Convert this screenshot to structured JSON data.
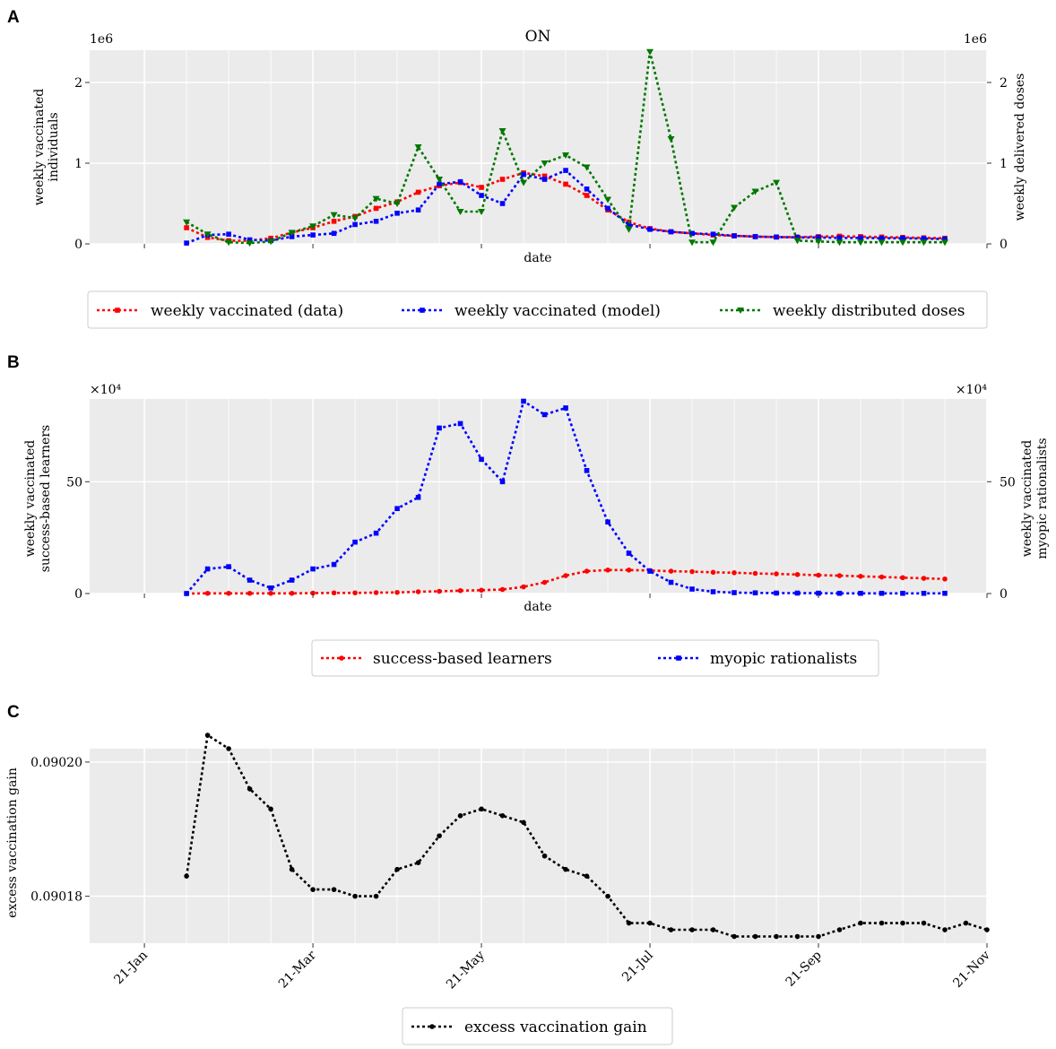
{
  "figure": {
    "panel_labels": [
      "A",
      "B",
      "C"
    ]
  },
  "chart_data": [
    {
      "panel": "A",
      "type": "line",
      "title": "ON",
      "xlabel": "date",
      "ylabel_lines": [
        "weekly vaccinated",
        "individuals"
      ],
      "ylabel_right": "weekly delivered doses",
      "offset_left": "1e6",
      "offset_right": "1e6",
      "ylim": [
        0,
        2.4
      ],
      "yticks": [
        0,
        1,
        2
      ],
      "ytick_labels": [
        "0",
        "1",
        "2"
      ],
      "grid": true,
      "legend_position": "below",
      "series": [
        {
          "name": "weekly vaccinated (data)",
          "color": "#ff0000",
          "marker": "square",
          "axis": "left",
          "x": [
            7,
            8,
            9,
            10,
            11,
            12,
            13,
            14,
            15,
            16,
            17,
            18,
            19,
            20,
            21,
            22,
            23,
            24,
            25,
            26,
            27,
            28,
            29,
            30,
            31,
            32,
            33,
            34,
            35,
            36,
            37,
            38,
            39,
            40,
            41,
            42,
            43
          ],
          "values": [
            0.2,
            0.08,
            0.04,
            0.04,
            0.07,
            0.14,
            0.2,
            0.28,
            0.34,
            0.44,
            0.52,
            0.64,
            0.72,
            0.76,
            0.7,
            0.8,
            0.88,
            0.84,
            0.74,
            0.6,
            0.42,
            0.27,
            0.19,
            0.15,
            0.13,
            0.11,
            0.1,
            0.09,
            0.085,
            0.085,
            0.09,
            0.095,
            0.09,
            0.085,
            0.08,
            0.075,
            0.07
          ]
        },
        {
          "name": "weekly vaccinated (model)",
          "color": "#0000ff",
          "marker": "square",
          "axis": "left",
          "x": [
            7,
            8,
            9,
            10,
            11,
            12,
            13,
            14,
            15,
            16,
            17,
            18,
            19,
            20,
            21,
            22,
            23,
            24,
            25,
            26,
            27,
            28,
            29,
            30,
            31,
            32,
            33,
            34,
            35,
            36,
            37,
            38,
            39,
            40,
            41,
            42,
            43
          ],
          "values": [
            0.01,
            0.11,
            0.12,
            0.05,
            0.04,
            0.09,
            0.11,
            0.13,
            0.24,
            0.28,
            0.38,
            0.42,
            0.74,
            0.77,
            0.6,
            0.5,
            0.86,
            0.8,
            0.91,
            0.68,
            0.44,
            0.24,
            0.18,
            0.15,
            0.13,
            0.12,
            0.1,
            0.09,
            0.085,
            0.08,
            0.08,
            0.075,
            0.075,
            0.07,
            0.07,
            0.065,
            0.06
          ]
        },
        {
          "name": "weekly distributed doses",
          "color": "#007700",
          "marker": "triangle-down",
          "axis": "right",
          "x": [
            7,
            8,
            9,
            10,
            11,
            12,
            13,
            14,
            15,
            16,
            17,
            18,
            19,
            20,
            21,
            22,
            23,
            24,
            25,
            26,
            27,
            28,
            29,
            30,
            31,
            32,
            33,
            34,
            35,
            36,
            37,
            38,
            39,
            40,
            41,
            42,
            43
          ],
          "values": [
            0.27,
            0.12,
            0.02,
            0.01,
            0.03,
            0.14,
            0.22,
            0.36,
            0.32,
            0.56,
            0.5,
            1.2,
            0.8,
            0.4,
            0.4,
            1.4,
            0.76,
            1.0,
            1.1,
            0.95,
            0.55,
            0.18,
            2.38,
            1.3,
            0.02,
            0.02,
            0.45,
            0.65,
            0.76,
            0.04,
            0.03,
            0.02,
            0.02,
            0.02,
            0.02,
            0.02,
            0.02
          ]
        }
      ]
    },
    {
      "panel": "B",
      "type": "line",
      "xlabel": "date",
      "ylabel_lines": [
        "weekly vaccinated",
        "success-based learners"
      ],
      "ylabel_right_lines": [
        "weekly vaccinated",
        "myopic rationalists"
      ],
      "offset_left": "×10⁴",
      "offset_right": "×10⁴",
      "ylim": [
        0,
        87
      ],
      "yticks": [
        0,
        50
      ],
      "ytick_labels": [
        "0",
        "50"
      ],
      "grid": true,
      "legend_position": "below",
      "series": [
        {
          "name": "success-based learners",
          "color": "#ff0000",
          "marker": "circle",
          "axis": "left",
          "x": [
            7,
            8,
            9,
            10,
            11,
            12,
            13,
            14,
            15,
            16,
            17,
            18,
            19,
            20,
            21,
            22,
            23,
            24,
            25,
            26,
            27,
            28,
            29,
            30,
            31,
            32,
            33,
            34,
            35,
            36,
            37,
            38,
            39,
            40,
            41,
            42,
            43
          ],
          "values": [
            0,
            0.1,
            0.1,
            0.1,
            0.1,
            0.1,
            0.2,
            0.3,
            0.3,
            0.4,
            0.5,
            0.8,
            1,
            1.3,
            1.5,
            1.8,
            3,
            5,
            8,
            10,
            10.5,
            10.5,
            10.3,
            10,
            9.8,
            9.5,
            9.3,
            9,
            8.8,
            8.5,
            8.2,
            8,
            7.7,
            7.4,
            7.1,
            6.8,
            6.5
          ]
        },
        {
          "name": "myopic rationalists",
          "color": "#0000ff",
          "marker": "square",
          "axis": "right",
          "x": [
            7,
            8,
            9,
            10,
            11,
            12,
            13,
            14,
            15,
            16,
            17,
            18,
            19,
            20,
            21,
            22,
            23,
            24,
            25,
            26,
            27,
            28,
            29,
            30,
            31,
            32,
            33,
            34,
            35,
            36,
            37,
            38,
            39,
            40,
            41,
            42,
            43
          ],
          "values": [
            0,
            11,
            12,
            6,
            2.5,
            6,
            11,
            13,
            23,
            27,
            38,
            43,
            74,
            76,
            60,
            50,
            86,
            80,
            83,
            55,
            32,
            18,
            10,
            5,
            2,
            0.8,
            0.4,
            0.3,
            0.2,
            0.2,
            0.15,
            0.1,
            0.1,
            0.1,
            0.1,
            0.1,
            0.1
          ]
        }
      ]
    },
    {
      "panel": "C",
      "type": "line",
      "ylabel": "excess vaccination gain",
      "ylim": [
        0.090173,
        0.090202
      ],
      "yticks": [
        0.09018,
        0.0902
      ],
      "ytick_labels": [
        "0.09018",
        "0.09020"
      ],
      "xtick_labels": [
        "21-Jan",
        "21-Mar",
        "21-May",
        "21-Jul",
        "21-Sep",
        "21-Nov"
      ],
      "xtick_positions": [
        5,
        13,
        21,
        29,
        37,
        45
      ],
      "grid": true,
      "legend_position": "below",
      "series": [
        {
          "name": "excess vaccination gain",
          "color": "#000000",
          "marker": "circle",
          "x": [
            7,
            8,
            9,
            10,
            11,
            12,
            13,
            14,
            15,
            16,
            17,
            18,
            19,
            20,
            21,
            22,
            23,
            24,
            25,
            26,
            27,
            28,
            29,
            30,
            31,
            32,
            33,
            34,
            35,
            36,
            37,
            38,
            39,
            40,
            41,
            42,
            43,
            44,
            45
          ],
          "values": [
            0.090183,
            0.090204,
            0.090202,
            0.090196,
            0.090193,
            0.090184,
            0.090181,
            0.090181,
            0.09018,
            0.09018,
            0.090184,
            0.090185,
            0.090189,
            0.090192,
            0.090193,
            0.090192,
            0.090191,
            0.090186,
            0.090184,
            0.090183,
            0.09018,
            0.090176,
            0.090176,
            0.090175,
            0.090175,
            0.090175,
            0.090174,
            0.090174,
            0.090174,
            0.090174,
            0.090174,
            0.090175,
            0.090176,
            0.090176,
            0.090176,
            0.090176,
            0.090175,
            0.090176,
            0.090175
          ]
        }
      ]
    }
  ]
}
